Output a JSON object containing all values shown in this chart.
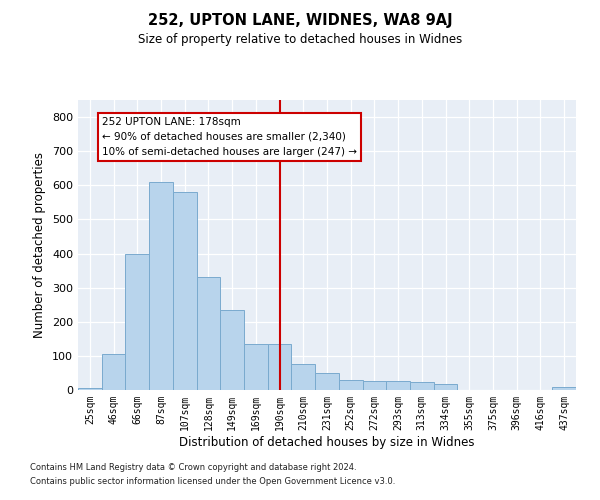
{
  "title": "252, UPTON LANE, WIDNES, WA8 9AJ",
  "subtitle": "Size of property relative to detached houses in Widnes",
  "xlabel": "Distribution of detached houses by size in Widnes",
  "ylabel": "Number of detached properties",
  "categories": [
    "25sqm",
    "46sqm",
    "66sqm",
    "87sqm",
    "107sqm",
    "128sqm",
    "149sqm",
    "169sqm",
    "190sqm",
    "210sqm",
    "231sqm",
    "252sqm",
    "272sqm",
    "293sqm",
    "313sqm",
    "334sqm",
    "355sqm",
    "375sqm",
    "396sqm",
    "416sqm",
    "437sqm"
  ],
  "values": [
    5,
    105,
    400,
    610,
    580,
    330,
    235,
    135,
    135,
    75,
    50,
    28,
    25,
    25,
    22,
    18,
    0,
    0,
    0,
    0,
    10
  ],
  "bar_color": "#b8d4ec",
  "bar_edge_color": "#7aaace",
  "background_color": "#e8eef6",
  "grid_color": "#ffffff",
  "vline_color": "#cc0000",
  "annotation_text": "252 UPTON LANE: 178sqm\n← 90% of detached houses are smaller (2,340)\n10% of semi-detached houses are larger (247) →",
  "annotation_box_edgecolor": "#cc0000",
  "ylim": [
    0,
    850
  ],
  "yticks": [
    0,
    100,
    200,
    300,
    400,
    500,
    600,
    700,
    800
  ],
  "footer1": "Contains HM Land Registry data © Crown copyright and database right 2024.",
  "footer2": "Contains public sector information licensed under the Open Government Licence v3.0."
}
